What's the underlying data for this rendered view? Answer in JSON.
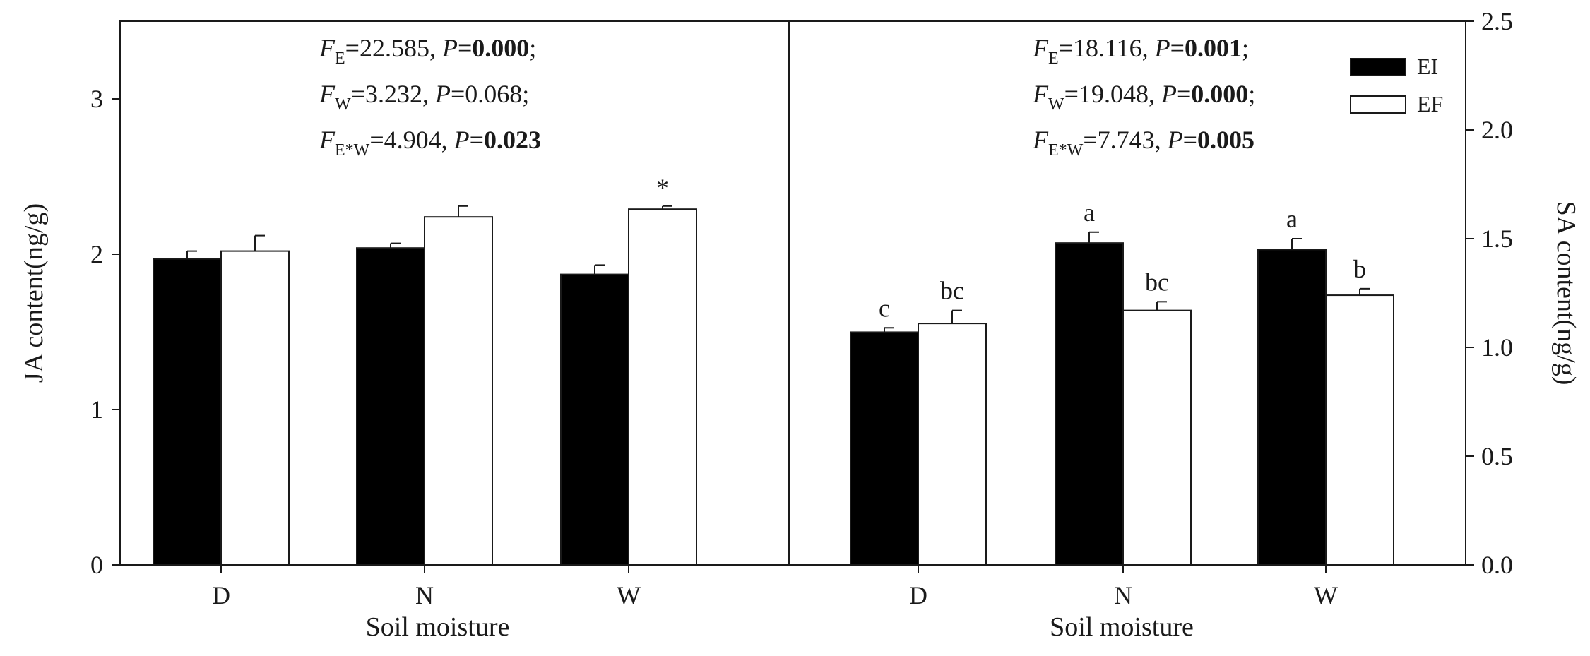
{
  "colors": {
    "EI": "#000000",
    "EF": "#ffffff",
    "stroke": "#1a1a1a"
  },
  "legend": [
    {
      "name": "EI",
      "color": "#000000"
    },
    {
      "name": "EF",
      "color": "#ffffff"
    }
  ],
  "legend_placement": "top-right of right panel",
  "chart_data": [
    {
      "type": "bar",
      "panel": "left",
      "xlabel": "Soil moisture",
      "ylabel": "JA content(ng/g)",
      "ylim": [
        0,
        3.5
      ],
      "yticks": [
        "0",
        "1",
        "2",
        "3"
      ],
      "categories": [
        "D",
        "N",
        "W"
      ],
      "series": [
        {
          "name": "EI",
          "values": [
            1.97,
            2.04,
            1.87
          ],
          "errors": [
            0.05,
            0.03,
            0.06
          ]
        },
        {
          "name": "EF",
          "values": [
            2.02,
            2.24,
            2.29
          ],
          "errors": [
            0.1,
            0.07,
            0.02
          ]
        }
      ],
      "annotations": [
        {
          "text": "*",
          "category": "W",
          "series": "EF"
        }
      ],
      "stats": [
        {
          "F": "F",
          "sub": "E",
          "fval": "=22.585, ",
          "P": "P",
          "pval": "=",
          "pbold": "0.000",
          "tail": ";"
        },
        {
          "F": "F",
          "sub": "W",
          "fval": "=3.232, ",
          "P": "P",
          "pval": "=0.068",
          "pbold": "",
          "tail": ";"
        },
        {
          "F": "F",
          "sub": "E*W",
          "fval": "=4.904, ",
          "P": "P",
          "pval": "=",
          "pbold": "0.023",
          "tail": ""
        }
      ]
    },
    {
      "type": "bar",
      "panel": "right",
      "xlabel": "Soil moisture",
      "ylabel": "SA content(ng/g)",
      "ylim": [
        0,
        2.5
      ],
      "yticks": [
        "0.0",
        "0.5",
        "1.0",
        "1.5",
        "2.0",
        "2.5"
      ],
      "categories": [
        "D",
        "N",
        "W"
      ],
      "series": [
        {
          "name": "EI",
          "values": [
            1.07,
            1.48,
            1.45
          ],
          "errors": [
            0.02,
            0.05,
            0.05
          ],
          "letters": [
            "c",
            "a",
            "a"
          ]
        },
        {
          "name": "EF",
          "values": [
            1.11,
            1.17,
            1.24
          ],
          "errors": [
            0.06,
            0.04,
            0.03
          ],
          "letters": [
            "bc",
            "bc",
            "b"
          ]
        }
      ],
      "stats": [
        {
          "F": "F",
          "sub": "E",
          "fval": "=18.116, ",
          "P": "P",
          "pval": "=",
          "pbold": "0.001",
          "tail": ";"
        },
        {
          "F": "F",
          "sub": "W",
          "fval": "=19.048, ",
          "P": "P",
          "pval": "=",
          "pbold": "0.000",
          "tail": ";"
        },
        {
          "F": "F",
          "sub": "E*W",
          "fval": "=7.743, ",
          "P": "P",
          "pval": "=",
          "pbold": "0.005",
          "tail": ""
        }
      ]
    }
  ]
}
